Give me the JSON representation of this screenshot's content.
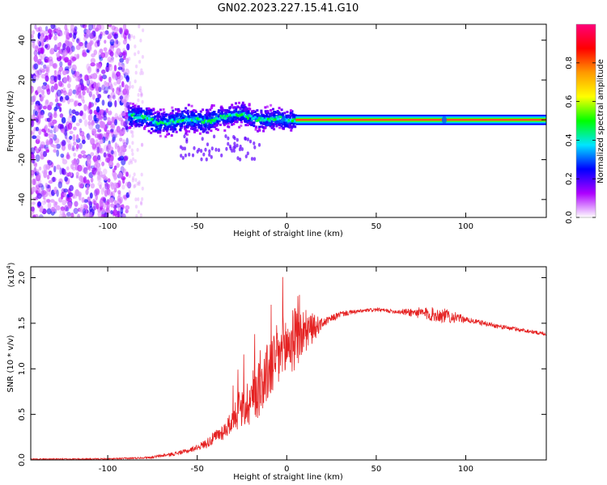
{
  "figure": {
    "title": "GN02.2023.227.15.41.G10"
  },
  "chart_data": [
    {
      "type": "heatmap",
      "xlabel": "Height of straight line (km)",
      "ylabel": "Frequency (Hz)",
      "xlim": [
        -143,
        145
      ],
      "ylim": [
        -49,
        48
      ],
      "xticks": [
        -100,
        -50,
        0,
        50,
        100
      ],
      "yticks": [
        -40,
        -20,
        0,
        20,
        40
      ],
      "colorbar": {
        "label": "Normalized spectral amplitude",
        "ticks": [
          0.0,
          0.2,
          0.4,
          0.6,
          0.8
        ],
        "range": [
          0,
          1
        ],
        "colors": [
          "#ffffff",
          "#ad00ff",
          "#0000ff",
          "#00e5ff",
          "#00ff00",
          "#ffff00",
          "#ff9900",
          "#ff0000",
          "#ff007a"
        ]
      },
      "regions": [
        {
          "name": "noise",
          "x_range": [
            -143,
            -88
          ],
          "freq_range": [
            -49,
            48
          ],
          "amplitude": 0.15
        },
        {
          "name": "tracking",
          "x_range": [
            -88,
            5
          ],
          "freq_range": [
            -10,
            8
          ],
          "amplitude": 0.3
        },
        {
          "name": "stable",
          "x_range": [
            5,
            145
          ],
          "freq_center": 0,
          "amplitude": 1.0
        }
      ],
      "ridge": [
        {
          "x": -85,
          "f": 2
        },
        {
          "x": -78,
          "f": 1
        },
        {
          "x": -72,
          "f": -2
        },
        {
          "x": -65,
          "f": -1
        },
        {
          "x": -58,
          "f": 0
        },
        {
          "x": -50,
          "f": 0
        },
        {
          "x": -44,
          "f": -1
        },
        {
          "x": -38,
          "f": 1
        },
        {
          "x": -32,
          "f": 2
        },
        {
          "x": -25,
          "f": 3
        },
        {
          "x": -20,
          "f": 1
        },
        {
          "x": -15,
          "f": 0
        },
        {
          "x": -10,
          "f": 0
        },
        {
          "x": -5,
          "f": 1
        },
        {
          "x": 0,
          "f": 0
        },
        {
          "x": 145,
          "f": 0
        }
      ]
    },
    {
      "type": "line",
      "xlabel": "Height of straight line (km)",
      "ylabel": "SNR (10 * v/v)",
      "scale_label": "(x10",
      "scale_exp": "4",
      "scale_close": ")",
      "xlim": [
        -143,
        145
      ],
      "ylim": [
        0,
        2.12
      ],
      "xticks": [
        -100,
        -50,
        0,
        50,
        100
      ],
      "yticks": [
        0.0,
        0.5,
        1.0,
        1.5,
        2.0
      ],
      "series": [
        {
          "color": "#e52222",
          "envelope": {
            "x": [
              -143,
              -100,
              -85,
              -75,
              -65,
              -55,
              -45,
              -35,
              -25,
              -15,
              -8,
              0,
              8,
              15,
              22,
              30,
              40,
              50,
              60,
              70,
              80,
              90,
              100,
              110,
              120,
              130,
              145
            ],
            "y": [
              0.01,
              0.01,
              0.02,
              0.03,
              0.06,
              0.1,
              0.18,
              0.32,
              0.55,
              0.8,
              1.05,
              1.25,
              1.38,
              1.45,
              1.52,
              1.6,
              1.63,
              1.65,
              1.63,
              1.62,
              1.6,
              1.58,
              1.54,
              1.5,
              1.46,
              1.43,
              1.38
            ]
          },
          "noise": {
            "x": [
              -143,
              -80,
              -50,
              -30,
              -20,
              -10,
              0,
              8,
              20,
              40,
              60,
              70,
              80,
              90,
              100,
              145
            ],
            "y": [
              0.005,
              0.01,
              0.03,
              0.12,
              0.3,
              0.35,
              0.4,
              0.3,
              0.05,
              0.02,
              0.02,
              0.05,
              0.08,
              0.08,
              0.03,
              0.02
            ]
          }
        }
      ]
    }
  ]
}
